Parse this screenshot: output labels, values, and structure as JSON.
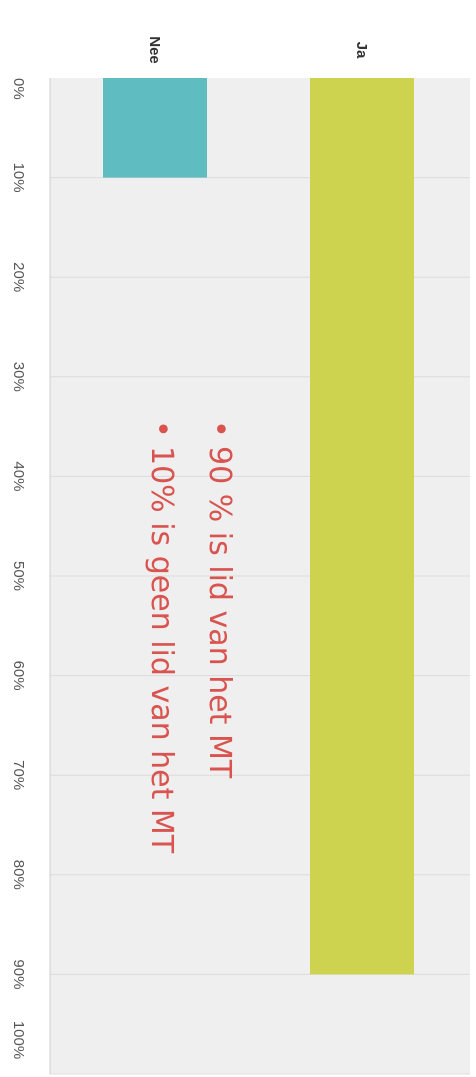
{
  "chart_data": {
    "type": "bar",
    "orientation": "horizontal",
    "rotated": "90deg-clockwise",
    "categories": [
      "Ja",
      "Nee"
    ],
    "values": [
      90,
      10
    ],
    "colors": [
      "#cdd34e",
      "#5fbcc0"
    ],
    "xlim": [
      0,
      100
    ],
    "ticks": [
      0,
      10,
      20,
      30,
      40,
      50,
      60,
      70,
      80,
      90,
      100
    ],
    "tick_labels": [
      "0%",
      "10%",
      "20%",
      "30%",
      "40%",
      "50%",
      "60%",
      "70%",
      "80%",
      "90%",
      "100%"
    ],
    "grid": true,
    "annotations": [
      "90 % is lid van het MT",
      "10% is geen lid van het MT"
    ],
    "annotation_color": "#d9534f"
  }
}
